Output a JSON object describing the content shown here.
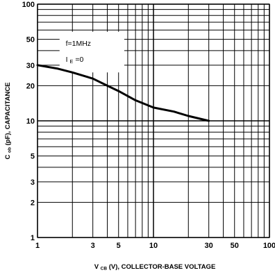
{
  "chart_data": {
    "type": "line",
    "xscale": "log",
    "yscale": "log",
    "xlim": [
      1,
      100
    ],
    "ylim": [
      1,
      100
    ],
    "grid": true,
    "xlabel_main": "V",
    "xlabel_sub": "CB",
    "xlabel_rest": " (V), COLLECTOR-BASE VOLTAGE",
    "ylabel_main": "C",
    "ylabel_sub": "ob",
    "ylabel_rest": " (pF), CAPACITANCE",
    "xtick_labels": [
      {
        "value": 1,
        "label": "1"
      },
      {
        "value": 3,
        "label": "3"
      },
      {
        "value": 5,
        "label": "5"
      },
      {
        "value": 10,
        "label": "10"
      },
      {
        "value": 30,
        "label": "30"
      },
      {
        "value": 50,
        "label": "50"
      },
      {
        "value": 100,
        "label": "100"
      }
    ],
    "ytick_labels": [
      {
        "value": 1,
        "label": "1"
      },
      {
        "value": 2,
        "label": "2"
      },
      {
        "value": 3,
        "label": "3"
      },
      {
        "value": 5,
        "label": "5"
      },
      {
        "value": 10,
        "label": "10"
      },
      {
        "value": 20,
        "label": "20"
      },
      {
        "value": 30,
        "label": "30"
      },
      {
        "value": 50,
        "label": "50"
      },
      {
        "value": 100,
        "label": "100"
      }
    ],
    "annotations": [
      {
        "main": "f=1MHz",
        "sub": ""
      },
      {
        "main": "I",
        "sub": "E",
        "rest": "=0"
      }
    ],
    "series": [
      {
        "x": [
          1,
          1.5,
          2,
          3,
          4,
          5,
          7,
          10,
          15,
          20,
          30
        ],
        "y": [
          30,
          28,
          26,
          23,
          20,
          18,
          15,
          13,
          12,
          11,
          10
        ]
      }
    ]
  }
}
